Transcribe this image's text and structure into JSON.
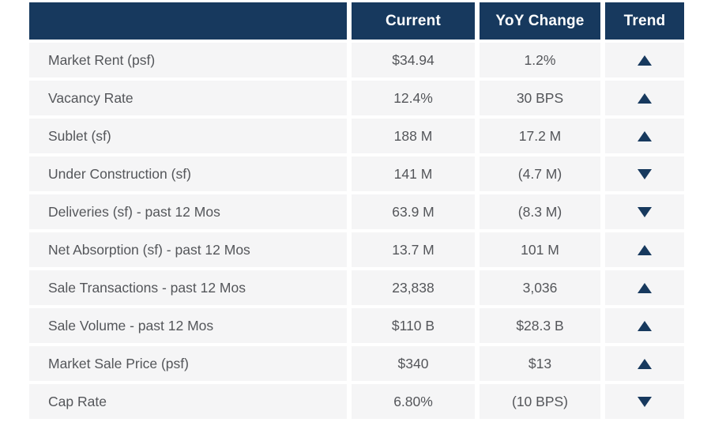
{
  "colors": {
    "header_bg": "#17395E",
    "row_bg": "#F5F5F6",
    "text": "#54565A",
    "trend_icon": "#17395E",
    "page_bg": "#FFFFFF"
  },
  "table": {
    "columns": {
      "label": "",
      "current": "Current",
      "yoy": "YoY Change",
      "trend": "Trend"
    },
    "rows": [
      {
        "label": "Market Rent (psf)",
        "current": "$34.94",
        "yoy": "1.2%",
        "trend": "up"
      },
      {
        "label": "Vacancy Rate",
        "current": "12.4%",
        "yoy": "30 BPS",
        "trend": "up"
      },
      {
        "label": "Sublet (sf)",
        "current": "188 M",
        "yoy": "17.2 M",
        "trend": "up"
      },
      {
        "label": "Under Construction (sf)",
        "current": "141 M",
        "yoy": "(4.7 M)",
        "trend": "down"
      },
      {
        "label": "Deliveries (sf) - past 12 Mos",
        "current": "63.9 M",
        "yoy": "(8.3 M)",
        "trend": "down"
      },
      {
        "label": "Net Absorption (sf) - past 12 Mos",
        "current": "13.7 M",
        "yoy": "101 M",
        "trend": "up"
      },
      {
        "label": "Sale Transactions - past 12 Mos",
        "current": "23,838",
        "yoy": "3,036",
        "trend": "up"
      },
      {
        "label": "Sale Volume - past 12 Mos",
        "current": "$110 B",
        "yoy": "$28.3 B",
        "trend": "up"
      },
      {
        "label": "Market Sale Price (psf)",
        "current": "$340",
        "yoy": "$13",
        "trend": "up"
      },
      {
        "label": "Cap Rate",
        "current": "6.80%",
        "yoy": "(10 BPS)",
        "trend": "down"
      }
    ]
  },
  "chart_data": {
    "type": "table",
    "title": "",
    "columns": [
      "",
      "Current",
      "YoY Change",
      "Trend"
    ],
    "rows": [
      [
        "Market Rent (psf)",
        "$34.94",
        "1.2%",
        "up"
      ],
      [
        "Vacancy Rate",
        "12.4%",
        "30 BPS",
        "up"
      ],
      [
        "Sublet (sf)",
        "188 M",
        "17.2 M",
        "up"
      ],
      [
        "Under Construction (sf)",
        "141 M",
        "(4.7 M)",
        "down"
      ],
      [
        "Deliveries (sf) - past 12 Mos",
        "63.9 M",
        "(8.3 M)",
        "down"
      ],
      [
        "Net Absorption (sf) - past 12 Mos",
        "13.7 M",
        "101 M",
        "up"
      ],
      [
        "Sale Transactions - past 12 Mos",
        "23,838",
        "3,036",
        "up"
      ],
      [
        "Sale Volume - past 12 Mos",
        "$110 B",
        "$28.3 B",
        "up"
      ],
      [
        "Market Sale Price (psf)",
        "$340",
        "$13",
        "up"
      ],
      [
        "Cap Rate",
        "6.80%",
        "(10 BPS)",
        "down"
      ]
    ]
  }
}
